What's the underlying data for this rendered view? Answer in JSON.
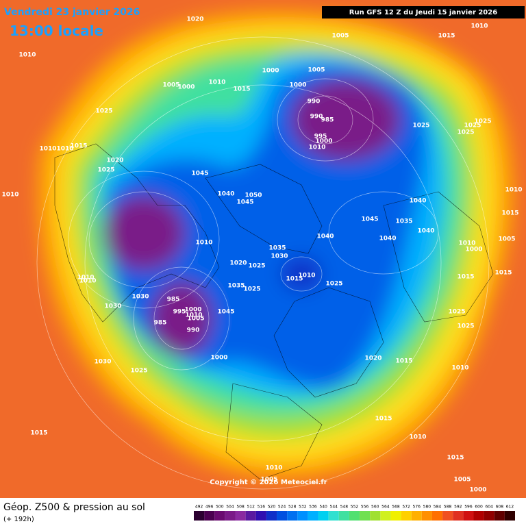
{
  "header": {
    "date": "Vendredi 23 janvier 2026",
    "time": "13:00 locale",
    "run": "Run GFS 12 Z du Jeudi 15 janvier 2026"
  },
  "copyright": "Copyright © 2026 Meteociel.fr",
  "footer": {
    "title": "Géop. Z500 & pression au sol",
    "lead": "(+ 192h)"
  },
  "isobar_labels": [
    1020,
    1010,
    1005,
    1000,
    1010,
    1015,
    1025,
    1000,
    1005,
    1000,
    990,
    990,
    985,
    995,
    1000,
    1010,
    1005,
    1015,
    1010,
    1025,
    1025,
    1025,
    1025,
    1010,
    1015,
    1005,
    1010,
    1000,
    1015,
    1015,
    1025,
    1025,
    1010,
    1015,
    1020,
    1040,
    1040,
    1035,
    1040,
    1045,
    1040,
    1035,
    1030,
    1015,
    1010,
    1025,
    1025,
    1020,
    1035,
    1025,
    1010,
    1040,
    1045,
    1050,
    1045,
    1010,
    1010,
    1015,
    1020,
    1025,
    1010,
    1010,
    1010,
    1030,
    1030,
    985,
    995,
    1000,
    1010,
    1005,
    985,
    990,
    1045,
    1000,
    1030,
    1025,
    1015,
    1015,
    1010,
    1015,
    1010,
    1005,
    1005,
    1000
  ],
  "colorbar": {
    "values": [
      492,
      496,
      500,
      504,
      508,
      512,
      516,
      520,
      524,
      528,
      532,
      536,
      540,
      544,
      548,
      552,
      556,
      560,
      564,
      568,
      572,
      576,
      580,
      584,
      588,
      592,
      596,
      600,
      604,
      608,
      612
    ],
    "colors": [
      "#2b0030",
      "#4b0050",
      "#6a0a70",
      "#7a1a88",
      "#8a2aa0",
      "#5a1aa0",
      "#3010b0",
      "#1030c8",
      "#0050e0",
      "#0070f0",
      "#0090ff",
      "#00b0ff",
      "#00d0f0",
      "#30e0d0",
      "#40e0a0",
      "#50e070",
      "#70e050",
      "#a0e030",
      "#d0f020",
      "#f0f000",
      "#ffd000",
      "#ffb000",
      "#ff9000",
      "#ff7000",
      "#f05020",
      "#e03020",
      "#d01010",
      "#b00000",
      "#900000",
      "#600000",
      "#300000"
    ]
  }
}
